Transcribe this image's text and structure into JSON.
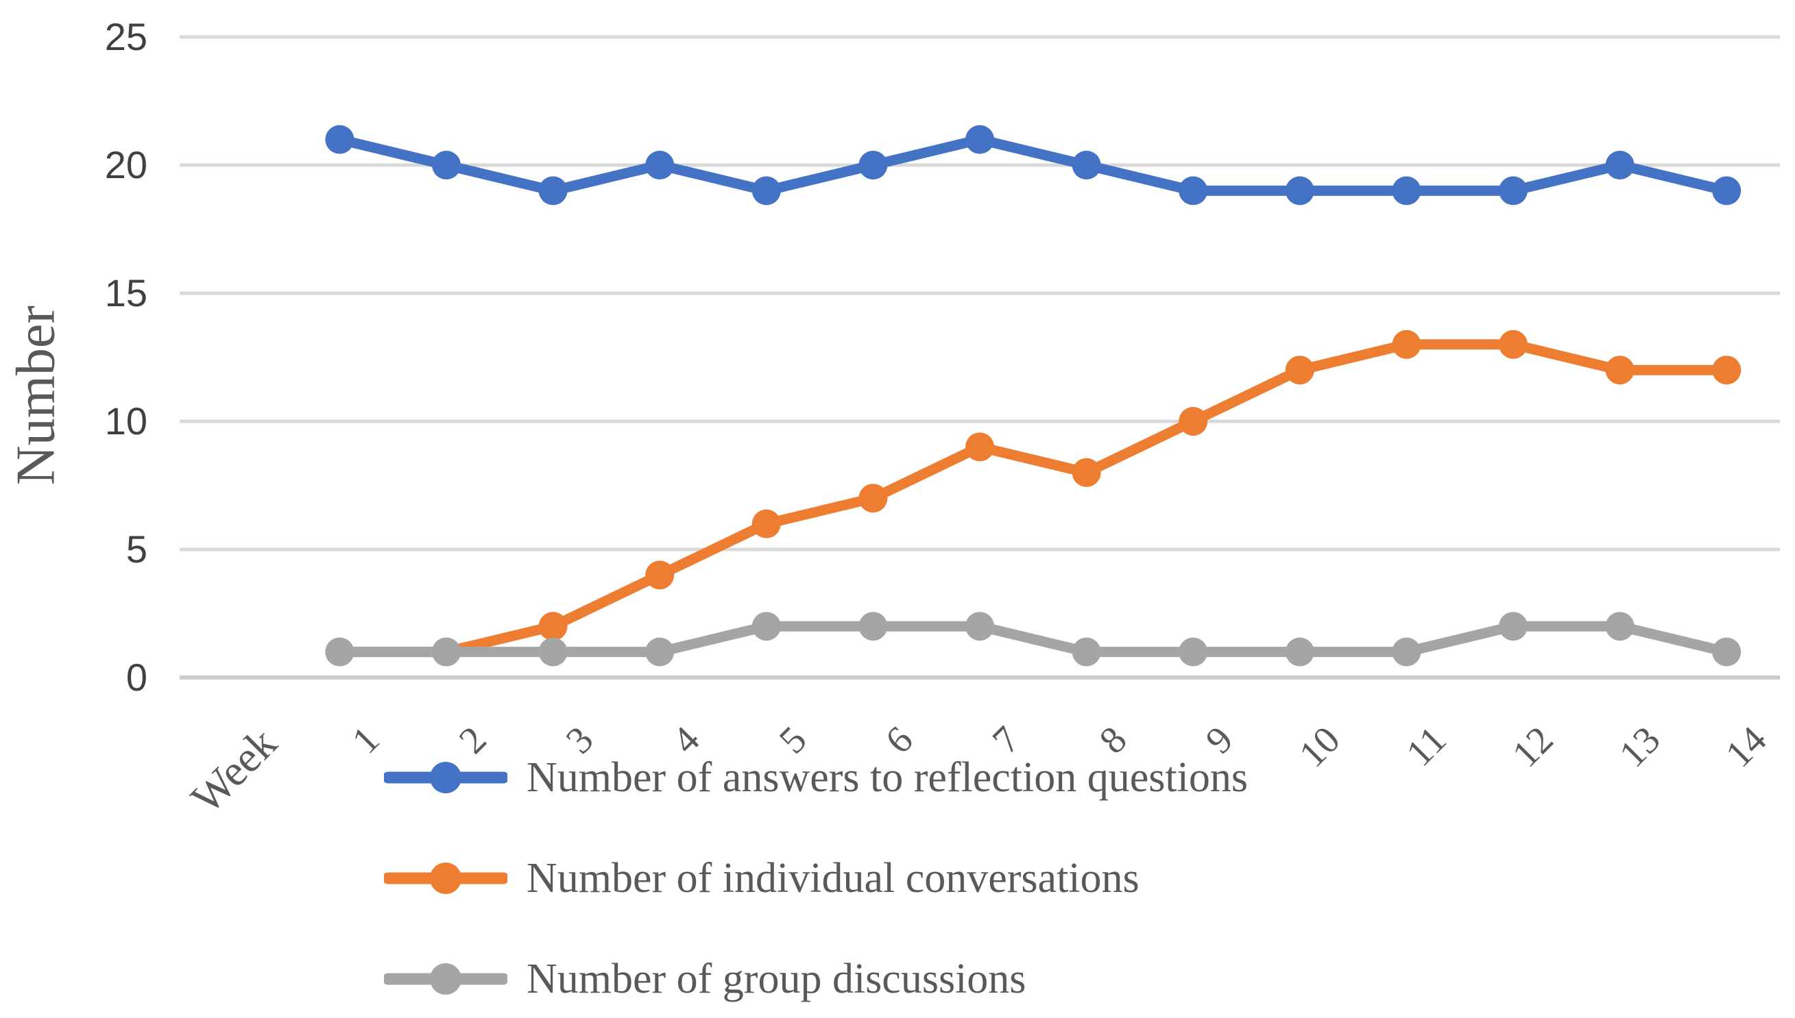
{
  "figure": {
    "background": "#FFFFFF"
  },
  "chart_data": {
    "type": "line",
    "title": "",
    "y_axis_label": "Number",
    "x_axis_label": "Week",
    "x_tick_labels": [
      "Week",
      "1",
      "2",
      "3",
      "4",
      "5",
      "6",
      "7",
      "8",
      "9",
      "10",
      "11",
      "12",
      "13",
      "14"
    ],
    "categories": [
      1,
      2,
      3,
      4,
      5,
      6,
      7,
      8,
      9,
      10,
      11,
      12,
      13,
      14
    ],
    "y_ticks": [
      0,
      5,
      10,
      15,
      20,
      25
    ],
    "ylim": [
      0,
      25
    ],
    "grid": true,
    "legend_position": "bottom-left",
    "series": [
      {
        "name": "Number of answers to reflection questions",
        "color": "#4472C4",
        "values": [
          21,
          20,
          19,
          20,
          19,
          20,
          21,
          20,
          19,
          19,
          19,
          19,
          20,
          19
        ]
      },
      {
        "name": "Number of individual conversations",
        "color": "#ED7D31",
        "values": [
          1,
          1,
          2,
          4,
          6,
          7,
          9,
          8,
          10,
          12,
          13,
          13,
          12,
          12
        ]
      },
      {
        "name": "Number of group discussions",
        "color": "#A5A5A5",
        "values": [
          1,
          1,
          1,
          1,
          2,
          2,
          2,
          1,
          1,
          1,
          1,
          2,
          2,
          1
        ]
      }
    ],
    "colors": {
      "gridline": "#D9D9D9",
      "axis_line": "#CCCCCC",
      "y_tick_text": "#404040",
      "x_tick_text": "#595959",
      "legend_text": "#595959"
    }
  }
}
